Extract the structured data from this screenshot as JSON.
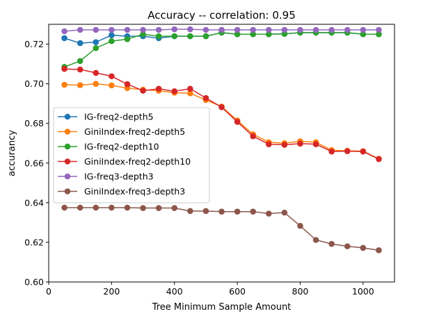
{
  "chart_data": {
    "type": "line",
    "title": "Accuracy -- correlation: 0.95",
    "xlabel": "Tree Minimum Sample Amount",
    "ylabel": "accurancy",
    "xlim": [
      0,
      1100
    ],
    "ylim": [
      0.6,
      0.73
    ],
    "xticks": [
      0,
      200,
      400,
      600,
      800,
      1000
    ],
    "yticks": [
      0.6,
      0.62,
      0.64,
      0.66,
      0.68,
      0.7,
      0.72
    ],
    "ytick_labels": [
      "0.60",
      "0.62",
      "0.64",
      "0.66",
      "0.68",
      "0.70",
      "0.72"
    ],
    "grid": false,
    "legend_position": "center-left",
    "x": [
      50,
      100,
      150,
      200,
      250,
      300,
      350,
      400,
      450,
      500,
      550,
      600,
      650,
      700,
      750,
      800,
      850,
      900,
      950,
      1000,
      1050
    ],
    "series": [
      {
        "name": "IG-freq2-depth5",
        "color": "#1f77b4",
        "values": [
          0.723,
          0.7205,
          0.721,
          0.7245,
          0.724,
          0.724,
          0.723,
          0.724,
          0.724,
          0.724,
          0.7258,
          0.725,
          0.725,
          0.725,
          0.7252,
          0.7258,
          0.7258,
          0.7258,
          0.7258,
          0.725,
          0.725
        ]
      },
      {
        "name": "GiniIndex-freq2-depth5",
        "color": "#ff7f0e",
        "values": [
          0.6995,
          0.6993,
          0.7,
          0.6992,
          0.6978,
          0.697,
          0.6965,
          0.6955,
          0.6952,
          0.6918,
          0.6885,
          0.6815,
          0.6745,
          0.6705,
          0.67,
          0.671,
          0.6705,
          0.6665,
          0.6662,
          0.666,
          0.6622
        ]
      },
      {
        "name": "IG-freq2-depth10",
        "color": "#2ca02c",
        "values": [
          0.7085,
          0.7115,
          0.718,
          0.7215,
          0.7225,
          0.725,
          0.724,
          0.724,
          0.724,
          0.724,
          0.7258,
          0.725,
          0.725,
          0.725,
          0.7252,
          0.7258,
          0.7258,
          0.7258,
          0.7258,
          0.725,
          0.725
        ]
      },
      {
        "name": "GiniIndex-freq2-depth10",
        "color": "#d62728",
        "values": [
          0.7075,
          0.7072,
          0.7055,
          0.7038,
          0.6998,
          0.6965,
          0.6975,
          0.6962,
          0.6975,
          0.6928,
          0.6882,
          0.6808,
          0.6735,
          0.6695,
          0.6692,
          0.6698,
          0.6695,
          0.6658,
          0.666,
          0.6658,
          0.662
        ]
      },
      {
        "name": "IG-freq3-depth3",
        "color": "#9467bd",
        "values": [
          0.7265,
          0.7272,
          0.7272,
          0.7272,
          0.7272,
          0.7272,
          0.7272,
          0.7275,
          0.7275,
          0.7272,
          0.7272,
          0.7272,
          0.7272,
          0.7272,
          0.7272,
          0.7272,
          0.7272,
          0.7272,
          0.7272,
          0.7272,
          0.7272
        ]
      },
      {
        "name": "GiniIndex-freq3-depth3",
        "color": "#8c564b",
        "values": [
          0.6375,
          0.6375,
          0.6375,
          0.6375,
          0.6375,
          0.6373,
          0.6373,
          0.6373,
          0.6358,
          0.6358,
          0.6355,
          0.6355,
          0.6355,
          0.6345,
          0.635,
          0.6283,
          0.6212,
          0.6192,
          0.618,
          0.6172,
          0.616
        ]
      }
    ]
  }
}
